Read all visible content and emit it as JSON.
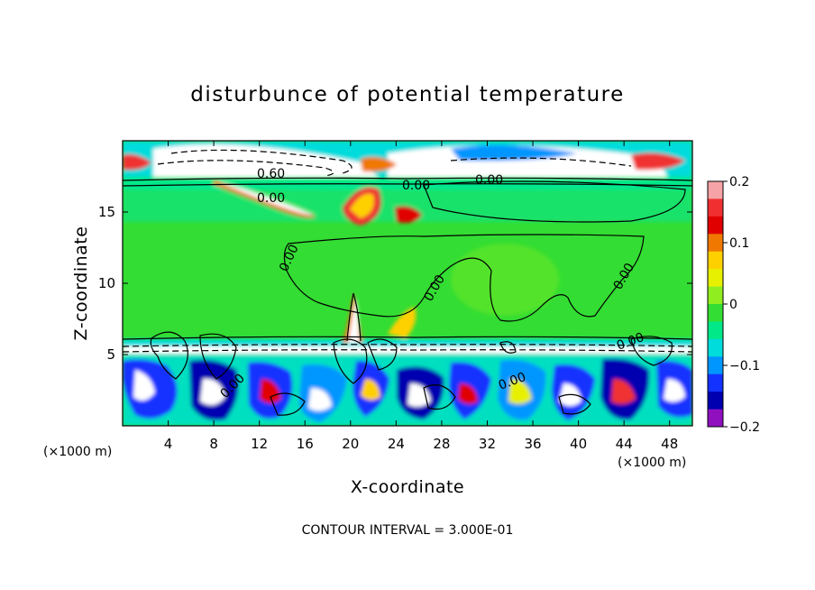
{
  "chart_data": {
    "type": "heatmap",
    "title": "disturbunce of potential temperature",
    "xlabel": "X-coordinate",
    "ylabel": "Z-coordinate",
    "x_unit_left": "(×1000 m)",
    "x_unit_right": "(×1000 m)",
    "xlim": [
      0,
      50
    ],
    "ylim": [
      0,
      20
    ],
    "x_ticks": [
      4,
      8,
      12,
      16,
      20,
      24,
      28,
      32,
      36,
      40,
      44,
      48
    ],
    "y_ticks": [
      5,
      10,
      15
    ],
    "colorbar": {
      "min": -0.2,
      "max": 0.2,
      "ticks": [
        0.2,
        0.1,
        0,
        -0.1,
        -0.2
      ],
      "tick_labels": [
        "0.2",
        "0.1",
        "0",
        "−0.1",
        "−0.2"
      ],
      "colors": [
        "#f6a3a8",
        "#f03030",
        "#e00000",
        "#f07800",
        "#ffd000",
        "#e6f000",
        "#90ee20",
        "#33dd33",
        "#00e888",
        "#00dcdc",
        "#0096ff",
        "#1432ff",
        "#0000b0",
        "#9010c0"
      ]
    },
    "contour_labels": [
      "0.60",
      "0.00",
      "0.00",
      "0.00",
      "0.00",
      "0.00",
      "0.00",
      "0.00",
      "0.00",
      "0.00"
    ],
    "footer": "CONTOUR INTERVAL = 3.000E-01"
  },
  "colors": {
    "background": "#ffffff",
    "field_neutral": "#33dd33",
    "axis": "#000000"
  }
}
